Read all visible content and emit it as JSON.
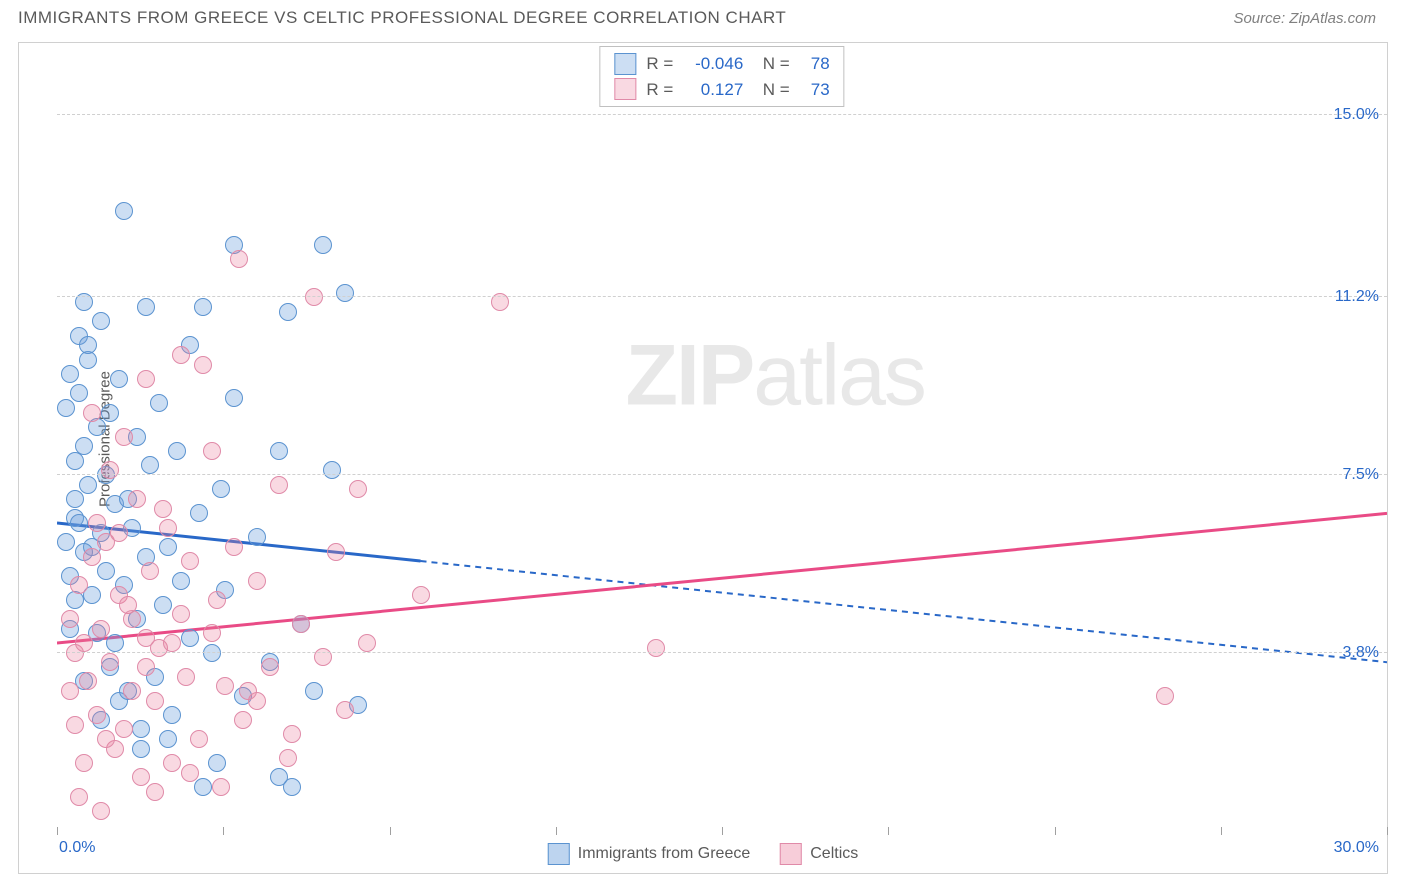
{
  "header": {
    "title": "IMMIGRANTS FROM GREECE VS CELTIC PROFESSIONAL DEGREE CORRELATION CHART",
    "source": "Source: ZipAtlas.com"
  },
  "watermark": {
    "bold": "ZIP",
    "light": "atlas"
  },
  "chart": {
    "type": "scatter",
    "ylabel": "Professional Degree",
    "x_range": [
      0,
      30
    ],
    "y_range": [
      0,
      16.5
    ],
    "x_min_label": "0.0%",
    "x_max_label": "30.0%",
    "y_ticks": [
      {
        "value": 3.8,
        "label": "3.8%"
      },
      {
        "value": 7.5,
        "label": "7.5%"
      },
      {
        "value": 11.2,
        "label": "11.2%"
      },
      {
        "value": 15.0,
        "label": "15.0%"
      }
    ],
    "x_tick_positions": [
      0,
      3.75,
      7.5,
      11.25,
      15,
      18.75,
      22.5,
      26.25,
      30
    ],
    "series": [
      {
        "name": "Immigrants from Greece",
        "fill_color": "rgba(108,160,220,0.35)",
        "stroke_color": "#5b93d0",
        "line_color": "#2968c8",
        "marker_radius": 9,
        "stats": {
          "R": "-0.046",
          "N": "78"
        },
        "trend": {
          "x1": 0,
          "y1": 6.5,
          "x2": 30,
          "y2": 3.6,
          "solid_until_x": 8.2
        },
        "points": [
          [
            0.2,
            6.1
          ],
          [
            0.3,
            4.3
          ],
          [
            0.4,
            6.6
          ],
          [
            0.4,
            7.8
          ],
          [
            0.5,
            9.2
          ],
          [
            0.5,
            10.4
          ],
          [
            0.6,
            11.1
          ],
          [
            0.6,
            8.1
          ],
          [
            0.7,
            9.9
          ],
          [
            0.7,
            7.3
          ],
          [
            0.8,
            6.0
          ],
          [
            0.8,
            5.0
          ],
          [
            0.9,
            8.5
          ],
          [
            0.9,
            4.2
          ],
          [
            1.0,
            6.3
          ],
          [
            1.0,
            10.7
          ],
          [
            1.1,
            7.5
          ],
          [
            1.1,
            5.5
          ],
          [
            1.2,
            3.5
          ],
          [
            1.2,
            8.8
          ],
          [
            1.3,
            6.9
          ],
          [
            1.3,
            4.0
          ],
          [
            1.4,
            9.5
          ],
          [
            1.4,
            2.8
          ],
          [
            1.5,
            13.0
          ],
          [
            1.5,
            5.2
          ],
          [
            1.6,
            7.0
          ],
          [
            1.6,
            3.0
          ],
          [
            1.7,
            6.4
          ],
          [
            1.8,
            8.3
          ],
          [
            1.8,
            4.5
          ],
          [
            1.9,
            2.2
          ],
          [
            2.0,
            11.0
          ],
          [
            2.0,
            5.8
          ],
          [
            2.1,
            7.7
          ],
          [
            2.2,
            3.3
          ],
          [
            2.3,
            9.0
          ],
          [
            2.4,
            4.8
          ],
          [
            2.5,
            6.0
          ],
          [
            2.6,
            2.5
          ],
          [
            2.7,
            8.0
          ],
          [
            2.8,
            5.3
          ],
          [
            3.0,
            10.2
          ],
          [
            3.0,
            4.1
          ],
          [
            3.2,
            6.7
          ],
          [
            3.3,
            11.0
          ],
          [
            3.5,
            3.8
          ],
          [
            3.6,
            1.5
          ],
          [
            3.7,
            7.2
          ],
          [
            3.8,
            5.1
          ],
          [
            4.0,
            9.1
          ],
          [
            4.0,
            12.3
          ],
          [
            4.2,
            2.9
          ],
          [
            4.5,
            6.2
          ],
          [
            4.8,
            3.6
          ],
          [
            5.0,
            8.0
          ],
          [
            5.2,
            10.9
          ],
          [
            5.3,
            1.0
          ],
          [
            5.5,
            4.4
          ],
          [
            5.8,
            3.0
          ],
          [
            6.0,
            12.3
          ],
          [
            6.2,
            7.6
          ],
          [
            6.5,
            11.3
          ],
          [
            6.8,
            2.7
          ],
          [
            5.0,
            1.2
          ],
          [
            3.3,
            1.0
          ],
          [
            2.5,
            2.0
          ],
          [
            1.9,
            1.8
          ],
          [
            0.4,
            7.0
          ],
          [
            0.5,
            6.5
          ],
          [
            0.6,
            5.9
          ],
          [
            0.3,
            9.6
          ],
          [
            0.2,
            8.9
          ],
          [
            0.4,
            4.9
          ],
          [
            0.6,
            3.2
          ],
          [
            0.3,
            5.4
          ],
          [
            0.7,
            10.2
          ],
          [
            1.0,
            2.4
          ]
        ]
      },
      {
        "name": "Celtics",
        "fill_color": "rgba(235,130,160,0.30)",
        "stroke_color": "#e08aa8",
        "line_color": "#e94b86",
        "marker_radius": 9,
        "stats": {
          "R": "0.127",
          "N": "73"
        },
        "trend": {
          "x1": 0,
          "y1": 4.0,
          "x2": 30,
          "y2": 6.7,
          "solid_until_x": 30
        },
        "points": [
          [
            0.3,
            4.5
          ],
          [
            0.4,
            3.8
          ],
          [
            0.5,
            5.2
          ],
          [
            0.6,
            4.0
          ],
          [
            0.7,
            3.2
          ],
          [
            0.8,
            5.8
          ],
          [
            0.9,
            2.5
          ],
          [
            1.0,
            4.3
          ],
          [
            1.1,
            6.1
          ],
          [
            1.2,
            3.6
          ],
          [
            1.3,
            1.8
          ],
          [
            1.4,
            5.0
          ],
          [
            1.5,
            2.2
          ],
          [
            1.6,
            4.8
          ],
          [
            1.7,
            3.0
          ],
          [
            1.8,
            7.0
          ],
          [
            1.9,
            1.2
          ],
          [
            2.0,
            4.1
          ],
          [
            2.1,
            5.5
          ],
          [
            2.2,
            2.8
          ],
          [
            2.3,
            3.9
          ],
          [
            2.5,
            6.4
          ],
          [
            2.6,
            1.5
          ],
          [
            2.8,
            4.6
          ],
          [
            2.9,
            3.3
          ],
          [
            3.0,
            5.7
          ],
          [
            3.2,
            2.0
          ],
          [
            3.3,
            9.8
          ],
          [
            3.5,
            4.2
          ],
          [
            3.7,
            1.0
          ],
          [
            3.8,
            3.1
          ],
          [
            4.0,
            6.0
          ],
          [
            4.1,
            12.0
          ],
          [
            4.2,
            2.4
          ],
          [
            4.5,
            5.3
          ],
          [
            4.8,
            3.5
          ],
          [
            5.0,
            7.3
          ],
          [
            5.3,
            2.1
          ],
          [
            5.5,
            4.4
          ],
          [
            5.8,
            11.2
          ],
          [
            6.0,
            3.7
          ],
          [
            6.3,
            5.9
          ],
          [
            6.5,
            2.6
          ],
          [
            6.8,
            7.2
          ],
          [
            7.0,
            4.0
          ],
          [
            4.5,
            2.8
          ],
          [
            3.5,
            8.0
          ],
          [
            2.8,
            10.0
          ],
          [
            10.0,
            11.1
          ],
          [
            8.2,
            5.0
          ],
          [
            13.5,
            3.9
          ],
          [
            25.0,
            2.9
          ],
          [
            2.0,
            9.5
          ],
          [
            1.5,
            8.3
          ],
          [
            1.2,
            7.6
          ],
          [
            0.9,
            6.5
          ],
          [
            0.6,
            1.5
          ],
          [
            0.4,
            2.3
          ],
          [
            0.5,
            0.8
          ],
          [
            1.0,
            0.5
          ],
          [
            2.2,
            0.9
          ],
          [
            3.0,
            1.3
          ],
          [
            1.7,
            4.5
          ],
          [
            2.4,
            6.8
          ],
          [
            4.3,
            3.0
          ],
          [
            3.6,
            4.9
          ],
          [
            5.2,
            1.6
          ],
          [
            2.6,
            4.0
          ],
          [
            1.1,
            2.0
          ],
          [
            0.8,
            8.8
          ],
          [
            1.4,
            6.3
          ],
          [
            2.0,
            3.5
          ],
          [
            0.3,
            3.0
          ]
        ]
      }
    ],
    "bottom_legend": [
      {
        "label": "Immigrants from Greece",
        "fill": "rgba(108,160,220,0.45)",
        "stroke": "#5b93d0"
      },
      {
        "label": "Celtics",
        "fill": "rgba(235,130,160,0.40)",
        "stroke": "#e08aa8"
      }
    ]
  }
}
